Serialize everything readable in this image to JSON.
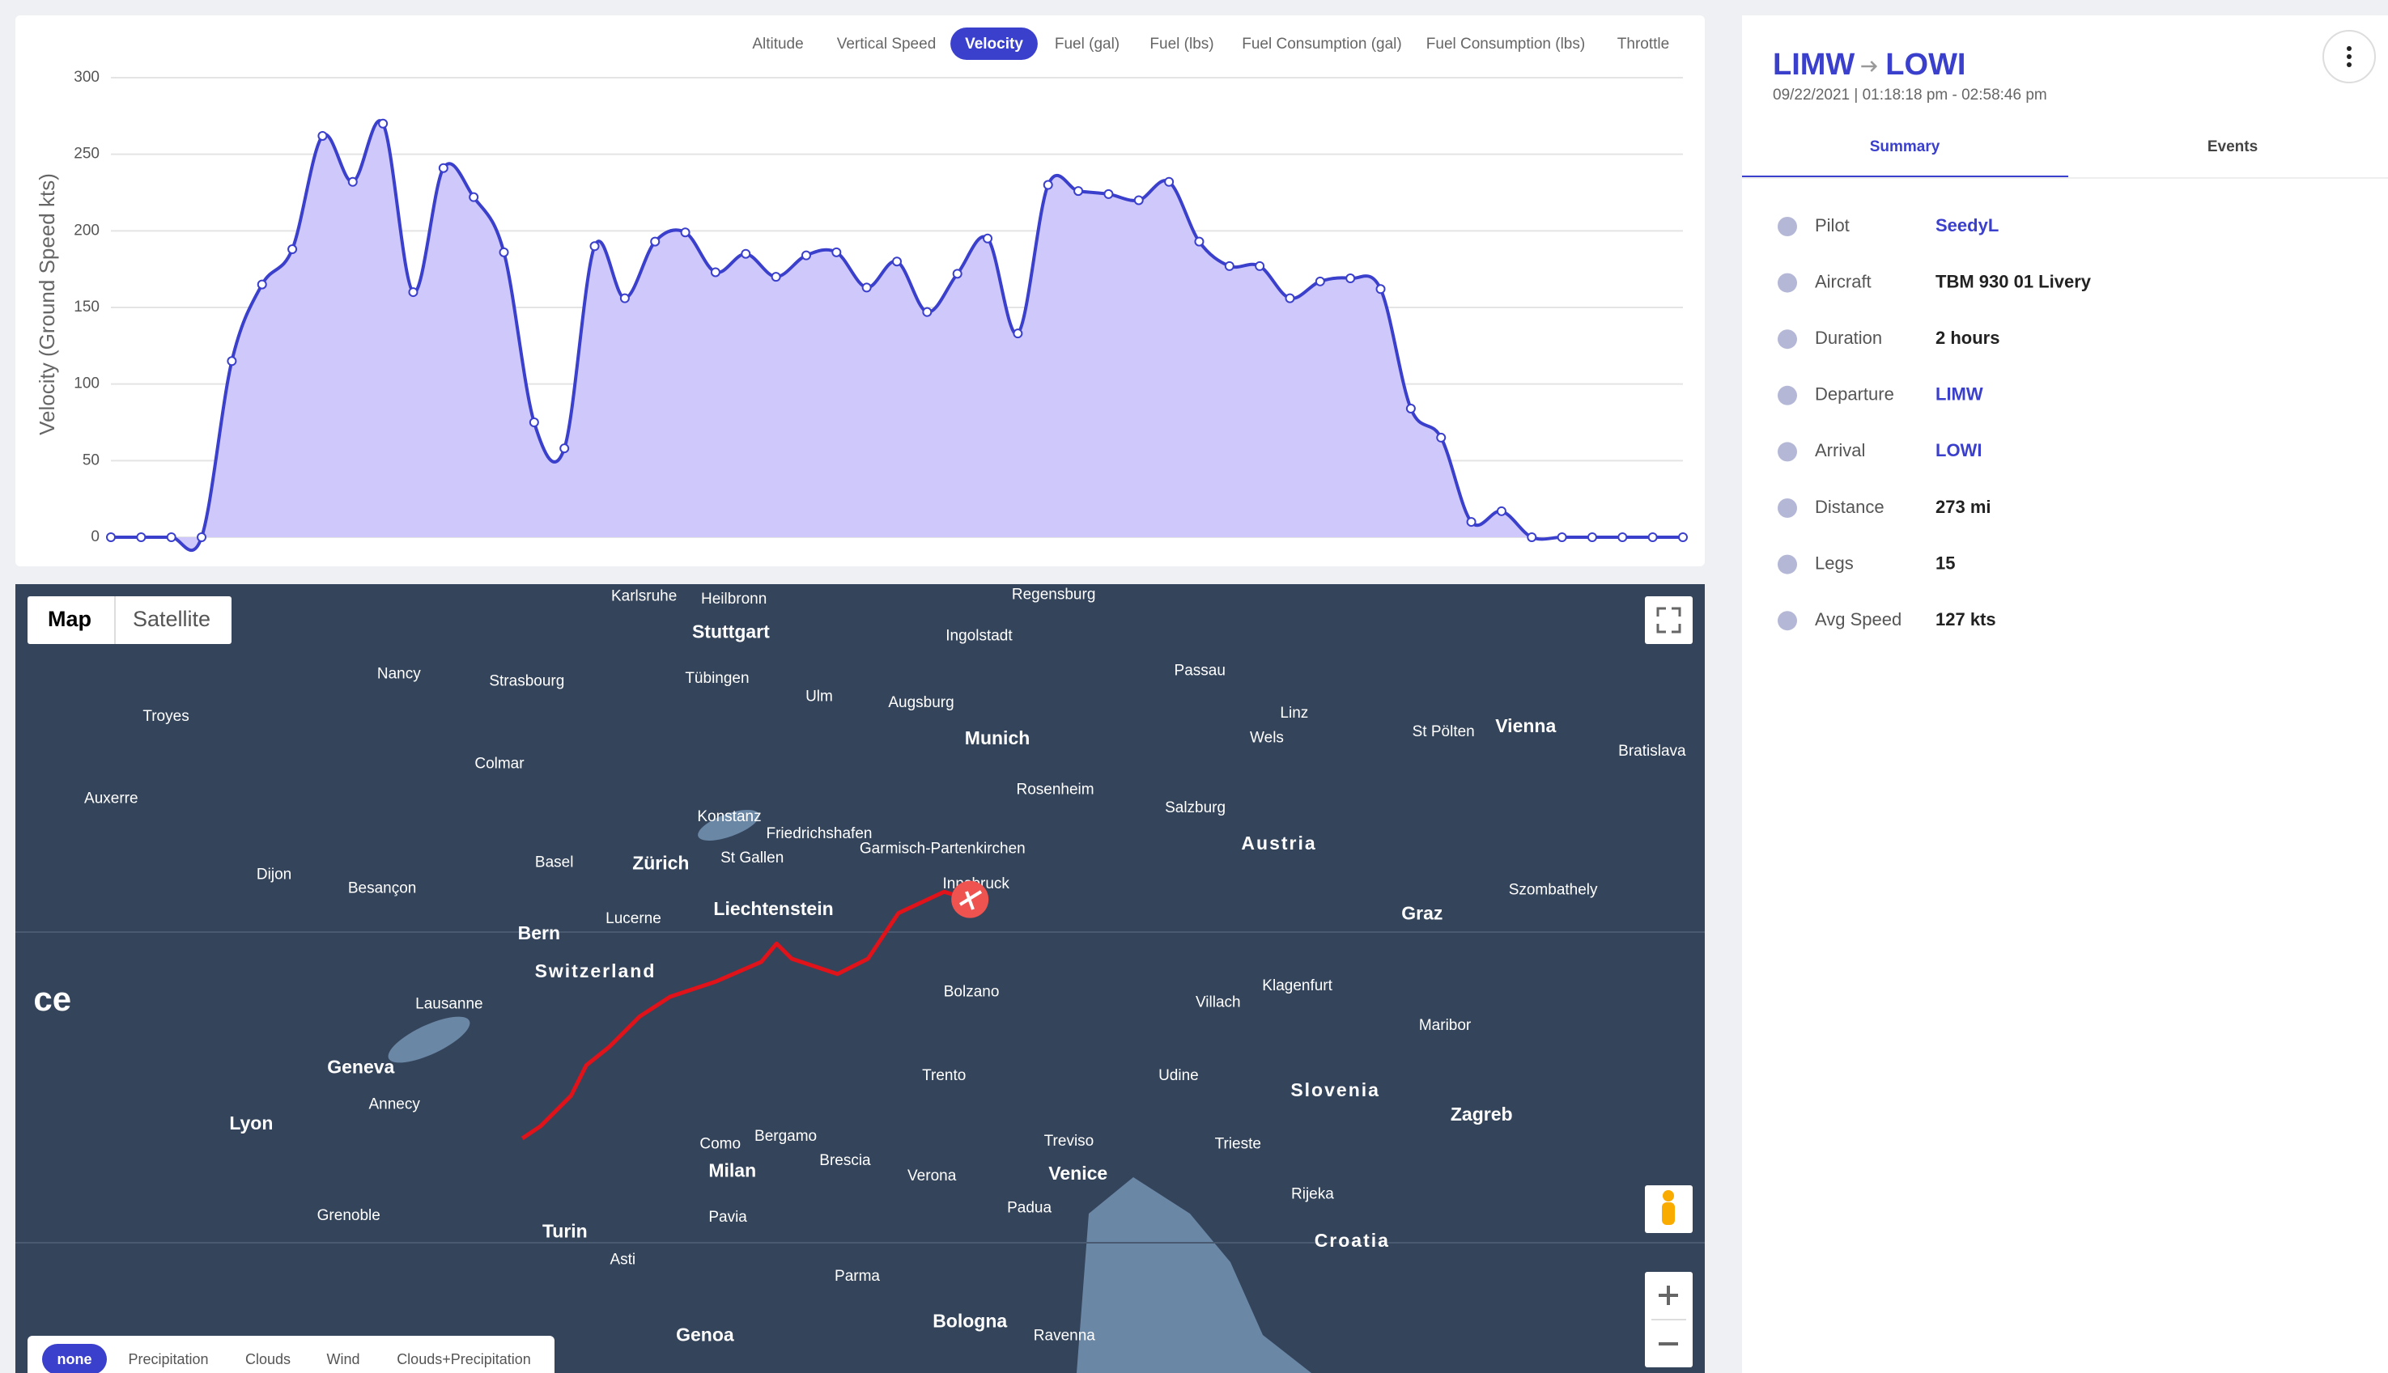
{
  "chart_tabs": {
    "items": [
      "Altitude",
      "Vertical Speed",
      "Velocity",
      "Fuel (gal)",
      "Fuel (lbs)",
      "Fuel Consumption (gal)",
      "Fuel Consumption (lbs)",
      "Throttle"
    ],
    "selected": 2
  },
  "chart_data": {
    "type": "area",
    "y_label": "Velocity (Ground Speed kts)",
    "values": [
      0,
      0,
      0,
      0,
      115,
      165,
      188,
      262,
      232,
      270,
      160,
      241,
      222,
      186,
      75,
      58,
      190,
      156,
      193,
      199,
      173,
      185,
      170,
      184,
      186,
      163,
      180,
      147,
      172,
      195,
      133,
      230,
      226,
      224,
      220,
      232,
      193,
      177,
      177,
      156,
      167,
      169,
      162,
      84,
      65,
      10,
      17,
      0,
      0,
      0,
      0,
      0,
      0
    ],
    "ylim": [
      0,
      300
    ],
    "yticks": [
      0,
      50,
      100,
      150,
      200,
      250,
      300
    ],
    "grid": true,
    "color": "#3a3fcc",
    "fill_color": "#cfc8fb"
  },
  "map": {
    "view_buttons": [
      "Map",
      "Satellite"
    ],
    "selected_view": 0,
    "labels": [
      "Karlsruhe",
      "Heilbronn",
      "Regensburg",
      "Stuttgart",
      "Ingolstadt",
      "Nancy",
      "Strasbourg",
      "Tübingen",
      "Passau",
      "Ulm",
      "Augsburg",
      "Linz",
      "Troyes",
      "Munich",
      "Wels",
      "St Pölten",
      "Vienna",
      "Bratislava",
      "Colmar",
      "Rosenheim",
      "Salzburg",
      "Auxerre",
      "Konstanz",
      "Friedrichshafen",
      "Garmisch-Partenkirchen",
      "Austria",
      "Basel",
      "Zürich",
      "St Gallen",
      "Dijon",
      "Besançon",
      "Innsbruck",
      "Liechtenstein",
      "Bern",
      "Lucerne",
      "Graz",
      "Szombathely",
      "Switzerland",
      "Lausanne",
      "Bolzano",
      "Klagenfurt",
      "Villach",
      "Maribor",
      "Geneva",
      "Annecy",
      "Trento",
      "Udine",
      "Slovenia",
      "Zagreb",
      "Lyon",
      "Bergamo",
      "Como",
      "Treviso",
      "Trieste",
      "Milan",
      "Brescia",
      "Verona",
      "Venice",
      "Grenoble",
      "Padua",
      "Rijeka",
      "Turin",
      "Pavia",
      "Croatia",
      "Asti",
      "Parma",
      "Genoa",
      "Bologna",
      "Ravenna",
      "ce"
    ],
    "layer_buttons": [
      "none",
      "Precipitation",
      "Clouds",
      "Wind",
      "Clouds+Precipitation"
    ],
    "selected_layer": 0
  },
  "flight": {
    "departure_code": "LIMW",
    "arrival_code": "LOWI",
    "time": "09/22/2021 | 01:18:18 pm - 02:58:46 pm",
    "tabs": [
      "Summary",
      "Events"
    ],
    "selected_tab": 0,
    "details": [
      {
        "label": "Pilot",
        "value": "SeedyL",
        "link": true
      },
      {
        "label": "Aircraft",
        "value": "TBM 930 01 Livery",
        "link": false
      },
      {
        "label": "Duration",
        "value": "2 hours",
        "link": false
      },
      {
        "label": "Departure",
        "value": "LIMW",
        "link": true
      },
      {
        "label": "Arrival",
        "value": "LOWI",
        "link": true
      },
      {
        "label": "Distance",
        "value": "273 mi",
        "link": false
      },
      {
        "label": "Legs",
        "value": "15",
        "link": false
      },
      {
        "label": "Avg Speed",
        "value": "127 kts",
        "link": false
      }
    ]
  }
}
